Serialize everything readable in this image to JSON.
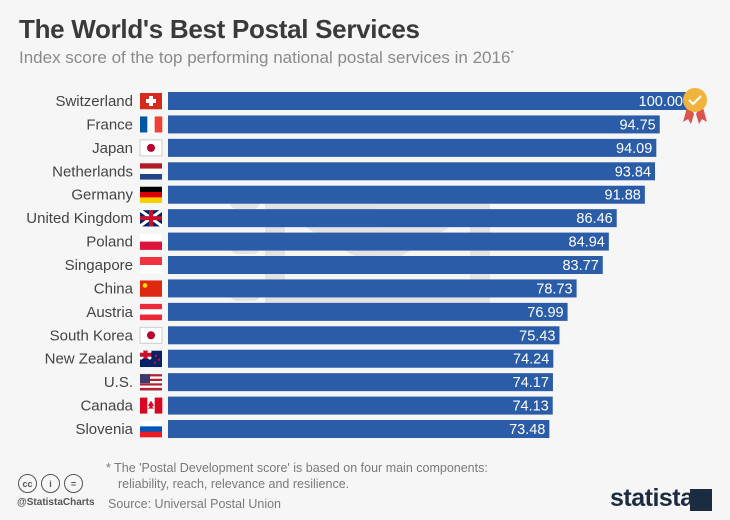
{
  "chart_data": {
    "type": "bar",
    "orientation": "horizontal",
    "title": "The World's Best Postal Services",
    "subtitle": "Index score of the top performing national postal services in 2016",
    "subtitle_mark": "*",
    "categories": [
      "Switzerland",
      "France",
      "Japan",
      "Netherlands",
      "Germany",
      "United Kingdom",
      "Poland",
      "Singapore",
      "China",
      "Austria",
      "South Korea",
      "New Zealand",
      "U.S.",
      "Canada",
      "Slovenia"
    ],
    "values": [
      100.0,
      94.75,
      94.09,
      93.84,
      91.88,
      86.46,
      84.94,
      83.77,
      78.73,
      76.99,
      75.43,
      74.24,
      74.17,
      74.13,
      73.48
    ],
    "labels": [
      "100.00",
      "94.75",
      "94.09",
      "93.84",
      "91.88",
      "86.46",
      "84.94",
      "83.77",
      "78.73",
      "76.99",
      "75.43",
      "74.24",
      "74.17",
      "74.13",
      "73.48"
    ],
    "xlim": [
      0,
      100
    ],
    "grid": false,
    "bar_color": "#2a5ca8",
    "highlight_icon": "award-badge-icon"
  },
  "footer": {
    "note_line1": "* The 'Postal Development score' is based on four main components:",
    "note_line2": "reliability, reach, relevance and resilience.",
    "source": "Source: Universal Postal Union",
    "handle": "@StatistaCharts",
    "logo": "statista",
    "license_icons": [
      "cc",
      "by",
      "nd"
    ]
  }
}
